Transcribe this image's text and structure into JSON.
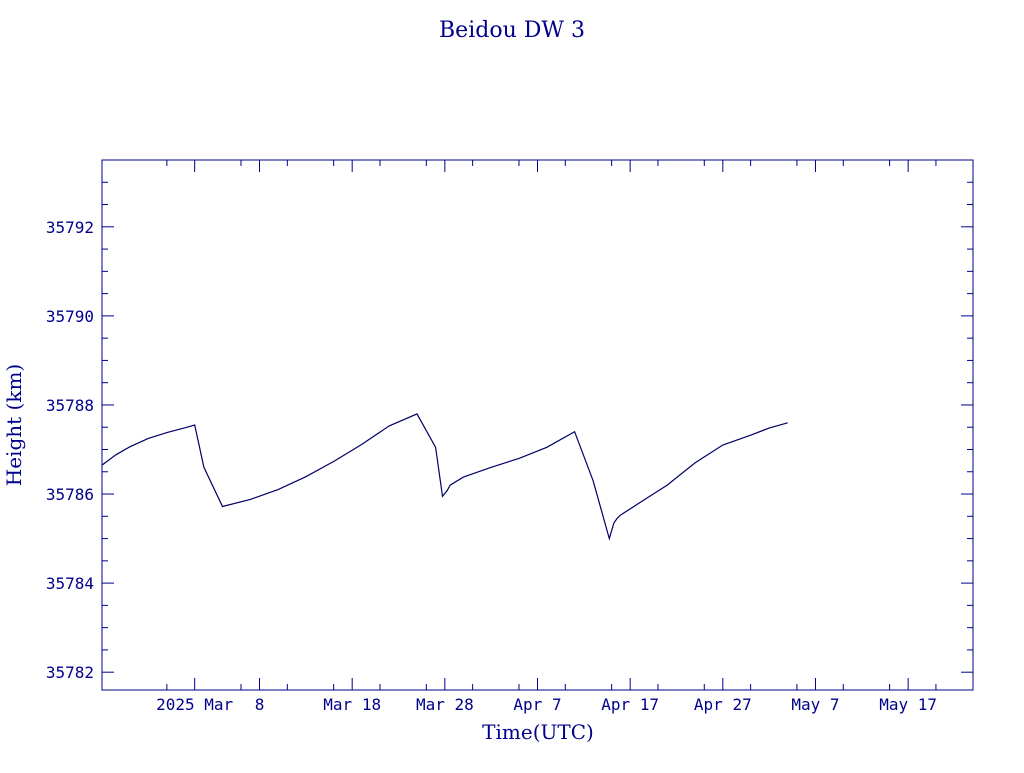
{
  "chart_data": {
    "type": "line",
    "title": "Beidou DW 3",
    "xlabel": "Time(UTC)",
    "ylabel": "Height (km)",
    "xlim": [
      "2025-02-19",
      "2025-05-24"
    ],
    "ylim": [
      35781.6,
      35793.5
    ],
    "grid": false,
    "legend": "none",
    "colors": {
      "axis": "#00008b",
      "line": "#000066"
    },
    "x_ticks": [
      {
        "date": "2025-03-01",
        "label": "2025 Mar"
      },
      {
        "date": "2025-03-08",
        "label": "8"
      },
      {
        "date": "2025-03-18",
        "label": "Mar 18"
      },
      {
        "date": "2025-03-28",
        "label": "Mar 28"
      },
      {
        "date": "2025-04-07",
        "label": "Apr  7"
      },
      {
        "date": "2025-04-17",
        "label": "Apr 17"
      },
      {
        "date": "2025-04-27",
        "label": "Apr 27"
      },
      {
        "date": "2025-05-07",
        "label": "May  7"
      },
      {
        "date": "2025-05-17",
        "label": "May 17"
      }
    ],
    "x_minor_ticks": [
      "2025-02-26",
      "2025-03-06",
      "2025-03-11",
      "2025-03-16",
      "2025-03-21",
      "2025-03-26",
      "2025-03-31",
      "2025-04-05",
      "2025-04-10",
      "2025-04-15",
      "2025-04-20",
      "2025-04-25",
      "2025-04-30",
      "2025-05-05",
      "2025-05-10",
      "2025-05-15",
      "2025-05-20"
    ],
    "y_ticks": [
      35782,
      35784,
      35786,
      35788,
      35790,
      35792
    ],
    "y_minor_ticks": [
      35782.5,
      35783,
      35783.5,
      35784.5,
      35785,
      35785.5,
      35786.5,
      35787,
      35787.5,
      35788.5,
      35789,
      35789.5,
      35790.5,
      35791,
      35791.5,
      35792.5,
      35793
    ],
    "series": [
      {
        "x": [
          "2025-02-19T00:00",
          "2025-02-20T12:00",
          "2025-02-22T00:00",
          "2025-02-24T00:00",
          "2025-02-26T00:00",
          "2025-02-28T00:00",
          "2025-03-01T00:00",
          "2025-03-02T00:00",
          "2025-03-04T00:00",
          "2025-03-07T00:00",
          "2025-03-10T00:00",
          "2025-03-13T00:00",
          "2025-03-16T00:00",
          "2025-03-19T00:00",
          "2025-03-22T00:00",
          "2025-03-25T00:00",
          "2025-03-27T00:00",
          "2025-03-27T18:00",
          "2025-03-28T06:00",
          "2025-03-28T14:00",
          "2025-03-30T00:00",
          "2025-04-02T00:00",
          "2025-04-05T00:00",
          "2025-04-08T00:00",
          "2025-04-11T00:00",
          "2025-04-13T00:00",
          "2025-04-14T18:00",
          "2025-04-15T06:00",
          "2025-04-15T14:00",
          "2025-04-15T22:00",
          "2025-04-18T00:00",
          "2025-04-21T00:00",
          "2025-04-24T00:00",
          "2025-04-27T00:00",
          "2025-04-30T00:00",
          "2025-05-02T00:00",
          "2025-05-04T00:00"
        ],
        "y": [
          35786.65,
          35786.88,
          35787.06,
          35787.25,
          35787.38,
          35787.49,
          35787.55,
          35786.6,
          35785.72,
          35785.88,
          35786.1,
          35786.39,
          35786.73,
          35787.11,
          35787.53,
          35787.8,
          35787.05,
          35785.95,
          35786.08,
          35786.2,
          35786.38,
          35786.6,
          35786.8,
          35787.05,
          35787.4,
          35786.3,
          35785.0,
          35785.35,
          35785.45,
          35785.52,
          35785.8,
          35786.2,
          35786.7,
          35787.1,
          35787.32,
          35787.48,
          35787.6
        ]
      }
    ]
  }
}
